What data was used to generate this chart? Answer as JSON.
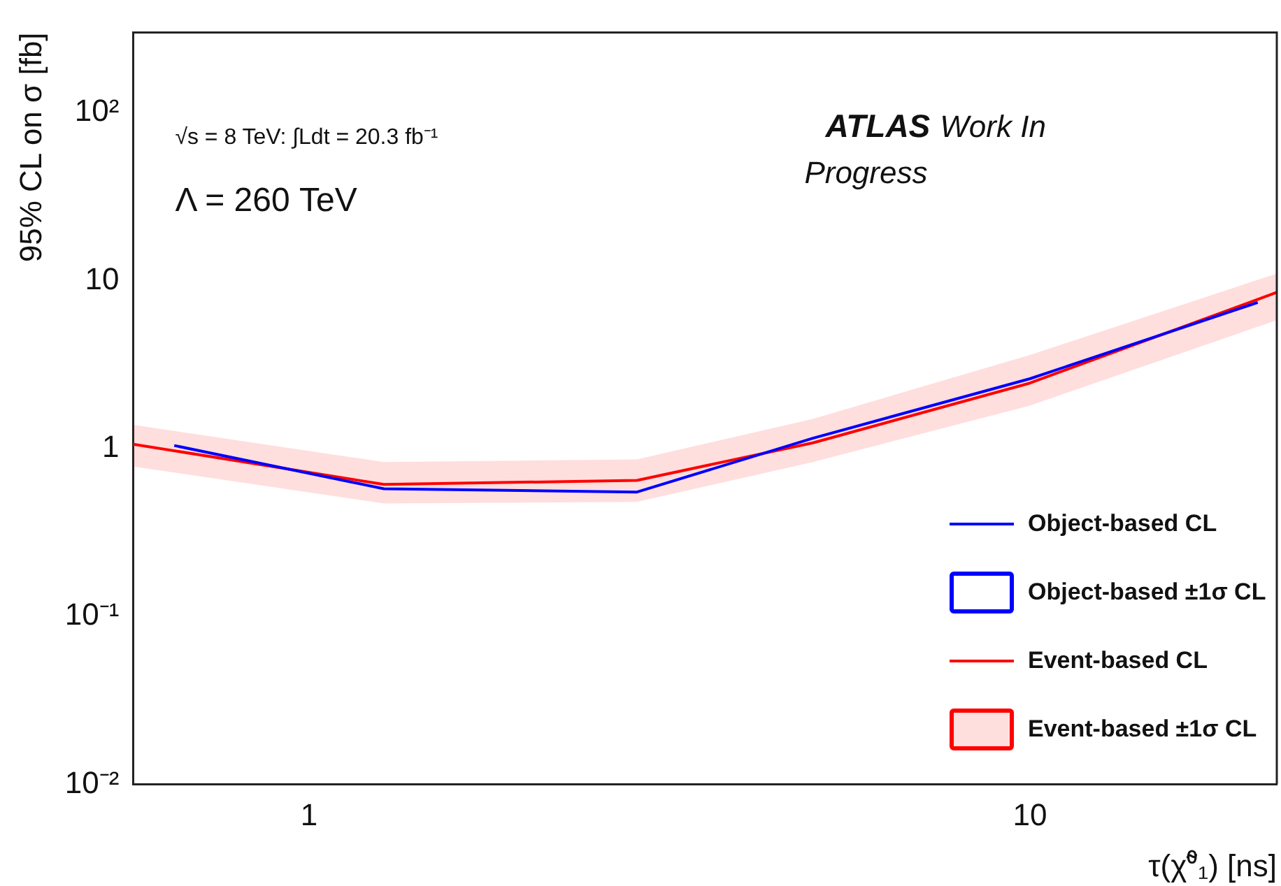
{
  "chart_data": {
    "type": "line",
    "xlabel": "τ(χ̃⁰₁) [ns]",
    "ylabel": "95% CL on σ [fb]",
    "log": "xy",
    "xlim": [
      0.57,
      22
    ],
    "xticks": [
      1,
      10
    ],
    "ylim": [
      0.01,
      300
    ],
    "yticks": [
      {
        "value": 0.01,
        "label": "10⁻²"
      },
      {
        "value": 0.1,
        "label": "10⁻¹"
      },
      1,
      10,
      {
        "value": 100,
        "label": "10²"
      }
    ],
    "grid": false,
    "legend": "bottom right",
    "marker": "none",
    "line_style": "solid",
    "annotations": [
      "√s = 8 TeV: ∫Ldt = 20.3 fb⁻¹",
      "Λ = 260 TeV",
      "ATLAS",
      "Work In Progress",
      "Object-based ±1σ CL",
      "Event-based ±1σ CL"
    ],
    "series": [
      {
        "name": "Object-based CL",
        "color": "#0000ff",
        "x": [
          0.65,
          1.27,
          2.85,
          5,
          10,
          20.7
        ],
        "values": [
          1.04,
          0.575,
          0.55,
          1.15,
          2.6,
          7.4
        ]
      },
      {
        "name": "Event-based CL",
        "color": "#ff0000",
        "x": [
          0.57,
          1.27,
          2.85,
          5,
          10,
          22
        ],
        "values": [
          1.06,
          0.61,
          0.645,
          1.08,
          2.45,
          8.5
        ],
        "lower": [
          0.78,
          0.47,
          0.48,
          0.83,
          1.8,
          5.8
        ],
        "upper": [
          1.38,
          0.83,
          0.86,
          1.5,
          3.6,
          11
        ]
      }
    ]
  }
}
